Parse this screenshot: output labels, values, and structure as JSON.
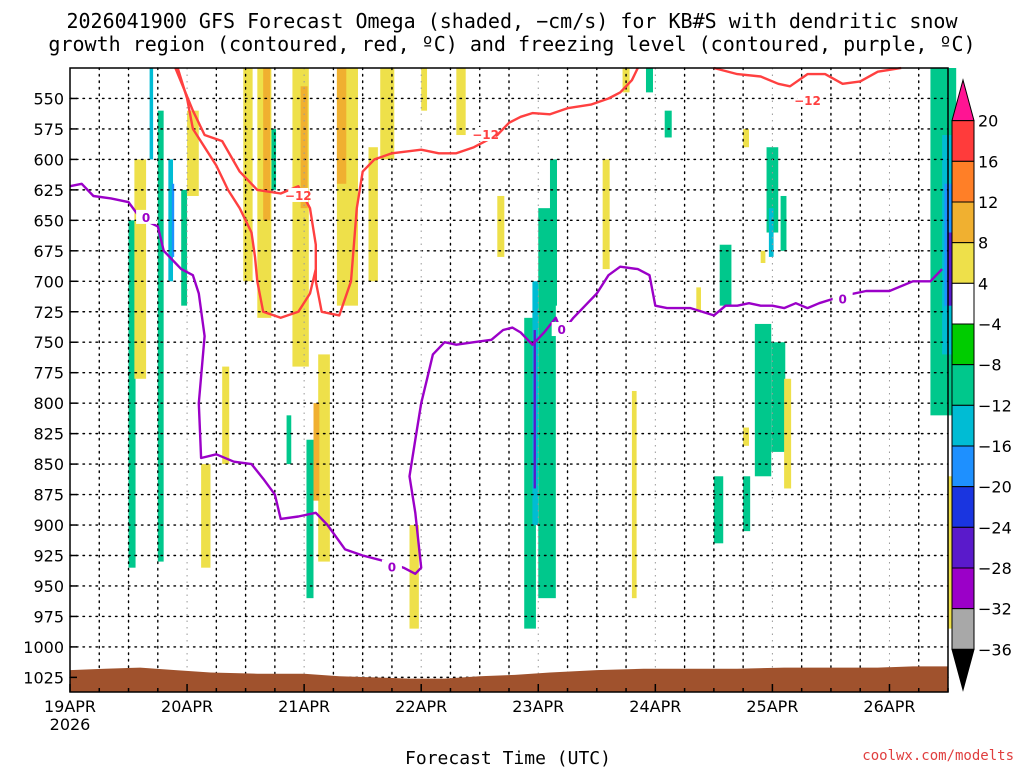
{
  "chart_data": {
    "type": "heatmap",
    "title_lines": [
      "2026041900 GFS Forecast Omega (shaded, −cm/s) for KB#S with dendritic snow",
      "growth region (contoured, red, ºC) and freezing level (contoured, purple, ºC)"
    ],
    "xlabel": "Forecast Time (UTC)",
    "credit": "coolwx.com/modelts",
    "credit_color": "#e03e3e",
    "x_ticks": [
      "19APR",
      "20APR",
      "21APR",
      "22APR",
      "23APR",
      "24APR",
      "25APR",
      "26APR"
    ],
    "x_year": "2026",
    "xlim_days": [
      0,
      7.5
    ],
    "y_ticks": [
      550,
      575,
      600,
      625,
      650,
      675,
      700,
      725,
      750,
      775,
      800,
      825,
      850,
      875,
      900,
      925,
      950,
      975,
      1000,
      1025
    ],
    "ylim": [
      525,
      1037
    ],
    "grid": true,
    "colorbar": {
      "labels": [
        "20",
        "16",
        "12",
        "8",
        "4",
        "−4",
        "−8",
        "−12",
        "−16",
        "−20",
        "−24",
        "−28",
        "−32",
        "−36"
      ],
      "colors": [
        "#ff1493",
        "#ff3b3b",
        "#ff7f27",
        "#f0b030",
        "#eee04a",
        "#ffffff",
        "#00cc00",
        "#00c88c",
        "#00bcd4",
        "#1e90ff",
        "#1a35e0",
        "#5a1acb",
        "#9b00c8",
        "#a8a8a8",
        "#000000"
      ]
    },
    "terrain_color": "#a0522d",
    "series": [
      {
        "name": "-12",
        "color": "#ff4040",
        "points": [
          [
            0.9,
            525
          ],
          [
            1.05,
            560
          ],
          [
            1.15,
            580
          ],
          [
            1.3,
            585
          ],
          [
            1.45,
            610
          ],
          [
            1.6,
            625
          ],
          [
            1.8,
            628
          ],
          [
            1.95,
            622
          ],
          [
            2.05,
            640
          ],
          [
            2.1,
            670
          ],
          [
            2.1,
            700
          ],
          [
            2.15,
            725
          ],
          [
            2.3,
            728
          ],
          [
            2.4,
            700
          ],
          [
            2.45,
            640
          ],
          [
            2.5,
            610
          ],
          [
            2.6,
            600
          ],
          [
            2.75,
            595
          ],
          [
            3.0,
            592
          ],
          [
            3.15,
            595
          ],
          [
            3.3,
            595
          ],
          [
            3.45,
            590
          ],
          [
            3.55,
            585
          ],
          [
            3.65,
            580
          ],
          [
            3.75,
            570
          ],
          [
            3.85,
            565
          ],
          [
            3.95,
            562
          ],
          [
            4.1,
            563
          ],
          [
            4.25,
            558
          ],
          [
            4.45,
            555
          ],
          [
            4.6,
            550
          ],
          [
            4.7,
            545
          ],
          [
            4.8,
            535
          ],
          [
            4.85,
            525
          ]
        ],
        "labels": [
          {
            "text": "−12",
            "x": 1.95,
            "p": 630
          },
          {
            "text": "−12",
            "x": 3.55,
            "p": 580
          }
        ]
      },
      {
        "name": "-12",
        "color": "#ff4040",
        "points": [
          [
            0.92,
            525
          ],
          [
            1.0,
            550
          ],
          [
            1.05,
            575
          ],
          [
            1.15,
            590
          ],
          [
            1.25,
            605
          ],
          [
            1.35,
            625
          ],
          [
            1.45,
            640
          ],
          [
            1.55,
            660
          ],
          [
            1.58,
            680
          ],
          [
            1.6,
            700
          ],
          [
            1.65,
            725
          ],
          [
            1.8,
            730
          ],
          [
            1.95,
            725
          ],
          [
            2.05,
            710
          ],
          [
            2.1,
            690
          ]
        ]
      },
      {
        "name": "-12",
        "color": "#ff4040",
        "points": [
          [
            5.5,
            525
          ],
          [
            5.7,
            530
          ],
          [
            5.9,
            532
          ],
          [
            6.05,
            538
          ],
          [
            6.15,
            540
          ],
          [
            6.3,
            530
          ],
          [
            6.45,
            530
          ],
          [
            6.6,
            538
          ],
          [
            6.75,
            536
          ],
          [
            6.9,
            528
          ],
          [
            7.1,
            525
          ]
        ],
        "labels": [
          {
            "text": "−12",
            "x": 6.3,
            "p": 552
          }
        ]
      },
      {
        "name": "0",
        "color": "#9b00c8",
        "points": [
          [
            0,
            622
          ],
          [
            0.1,
            620
          ],
          [
            0.2,
            630
          ],
          [
            0.35,
            632
          ],
          [
            0.5,
            635
          ],
          [
            0.6,
            648
          ],
          [
            0.75,
            655
          ],
          [
            0.8,
            675
          ],
          [
            0.9,
            685
          ],
          [
            0.95,
            690
          ],
          [
            1.05,
            695
          ],
          [
            1.1,
            710
          ],
          [
            1.15,
            745
          ],
          [
            1.1,
            800
          ],
          [
            1.12,
            845
          ],
          [
            1.25,
            842
          ],
          [
            1.4,
            848
          ],
          [
            1.55,
            850
          ],
          [
            1.65,
            862
          ],
          [
            1.75,
            875
          ],
          [
            1.8,
            895
          ],
          [
            1.95,
            893
          ],
          [
            2.1,
            890
          ],
          [
            2.2,
            900
          ],
          [
            2.35,
            920
          ],
          [
            2.5,
            925
          ],
          [
            2.7,
            930
          ],
          [
            2.85,
            935
          ],
          [
            2.95,
            940
          ],
          [
            3.0,
            935
          ],
          [
            2.95,
            890
          ],
          [
            2.9,
            860
          ],
          [
            2.95,
            830
          ],
          [
            3.0,
            800
          ],
          [
            3.05,
            780
          ],
          [
            3.1,
            760
          ],
          [
            3.2,
            750
          ],
          [
            3.3,
            752
          ],
          [
            3.45,
            750
          ],
          [
            3.6,
            748
          ],
          [
            3.7,
            740
          ],
          [
            3.78,
            738
          ],
          [
            3.85,
            742
          ],
          [
            3.95,
            752
          ],
          [
            4.05,
            742
          ],
          [
            4.15,
            730
          ],
          [
            4.2,
            742
          ],
          [
            4.3,
            730
          ],
          [
            4.4,
            720
          ],
          [
            4.5,
            710
          ],
          [
            4.6,
            695
          ],
          [
            4.7,
            688
          ],
          [
            4.85,
            690
          ],
          [
            4.95,
            695
          ],
          [
            5.0,
            720
          ],
          [
            5.1,
            722
          ],
          [
            5.3,
            722
          ],
          [
            5.5,
            728
          ],
          [
            5.6,
            720
          ],
          [
            5.7,
            720
          ],
          [
            5.8,
            718
          ],
          [
            5.9,
            720
          ],
          [
            6.0,
            720
          ],
          [
            6.1,
            722
          ],
          [
            6.2,
            718
          ],
          [
            6.3,
            722
          ],
          [
            6.4,
            718
          ],
          [
            6.6,
            712
          ],
          [
            6.8,
            708
          ],
          [
            7.0,
            708
          ],
          [
            7.2,
            700
          ],
          [
            7.35,
            700
          ],
          [
            7.45,
            690
          ]
        ],
        "labels": [
          {
            "text": "0",
            "x": 0.65,
            "p": 648
          },
          {
            "text": "0",
            "x": 2.75,
            "p": 935
          },
          {
            "text": "0",
            "x": 4.2,
            "p": 740
          },
          {
            "text": "0",
            "x": 6.6,
            "p": 715
          }
        ]
      }
    ],
    "shading": [
      {
        "v": -8,
        "x": 0.5,
        "w": 0.06,
        "p1": 650,
        "p2": 935
      },
      {
        "v": -8,
        "x": 0.75,
        "w": 0.05,
        "p1": 560,
        "p2": 930
      },
      {
        "v": -12,
        "x": 0.68,
        "w": 0.03,
        "p1": 525,
        "p2": 600
      },
      {
        "v": -8,
        "x": 0.95,
        "w": 0.05,
        "p1": 625,
        "p2": 720
      },
      {
        "v": -12,
        "x": 0.84,
        "w": 0.04,
        "p1": 600,
        "p2": 700
      },
      {
        "v": -16,
        "x": 0.87,
        "w": 0.02,
        "p1": 620,
        "p2": 680
      },
      {
        "v": -8,
        "x": 1.72,
        "w": 0.04,
        "p1": 575,
        "p2": 625
      },
      {
        "v": -8,
        "x": 1.85,
        "w": 0.04,
        "p1": 810,
        "p2": 850
      },
      {
        "v": -8,
        "x": 2.02,
        "w": 0.06,
        "p1": 830,
        "p2": 960
      },
      {
        "v": -8,
        "x": 4.0,
        "w": 0.15,
        "p1": 640,
        "p2": 960
      },
      {
        "v": -8,
        "x": 3.88,
        "w": 0.1,
        "p1": 730,
        "p2": 985
      },
      {
        "v": -12,
        "x": 3.95,
        "w": 0.05,
        "p1": 700,
        "p2": 900
      },
      {
        "v": -24,
        "x": 3.96,
        "w": 0.02,
        "p1": 740,
        "p2": 870
      },
      {
        "v": -8,
        "x": 4.1,
        "w": 0.06,
        "p1": 600,
        "p2": 720
      },
      {
        "v": -8,
        "x": 5.5,
        "w": 0.08,
        "p1": 860,
        "p2": 915
      },
      {
        "v": -8,
        "x": 5.75,
        "w": 0.06,
        "p1": 860,
        "p2": 905
      },
      {
        "v": -8,
        "x": 5.95,
        "w": 0.1,
        "p1": 590,
        "p2": 660
      },
      {
        "v": -8,
        "x": 6.07,
        "w": 0.05,
        "p1": 630,
        "p2": 675
      },
      {
        "v": -12,
        "x": 5.97,
        "w": 0.04,
        "p1": 640,
        "p2": 680
      },
      {
        "v": -8,
        "x": 5.85,
        "w": 0.14,
        "p1": 735,
        "p2": 860
      },
      {
        "v": -8,
        "x": 5.99,
        "w": 0.12,
        "p1": 750,
        "p2": 840
      },
      {
        "v": -8,
        "x": 5.08,
        "w": 0.06,
        "p1": 560,
        "p2": 582
      },
      {
        "v": -8,
        "x": 4.92,
        "w": 0.06,
        "p1": 525,
        "p2": 545
      },
      {
        "v": -8,
        "x": 5.55,
        "w": 0.1,
        "p1": 670,
        "p2": 720
      },
      {
        "v": -8,
        "x": 7.35,
        "w": 0.22,
        "p1": 525,
        "p2": 810
      },
      {
        "v": -12,
        "x": 7.45,
        "w": 0.12,
        "p1": 580,
        "p2": 760
      },
      {
        "v": -16,
        "x": 7.47,
        "w": 0.06,
        "p1": 620,
        "p2": 720
      },
      {
        "v": -24,
        "x": 7.5,
        "w": 0.03,
        "p1": 660,
        "p2": 720
      },
      {
        "v": 4,
        "x": 0.55,
        "w": 0.1,
        "p1": 600,
        "p2": 780
      },
      {
        "v": 4,
        "x": 1.0,
        "w": 0.1,
        "p1": 560,
        "p2": 630
      },
      {
        "v": 4,
        "x": 1.12,
        "w": 0.08,
        "p1": 850,
        "p2": 935
      },
      {
        "v": 4,
        "x": 1.3,
        "w": 0.06,
        "p1": 770,
        "p2": 850
      },
      {
        "v": 4,
        "x": 1.48,
        "w": 0.08,
        "p1": 525,
        "p2": 700
      },
      {
        "v": 4,
        "x": 1.6,
        "w": 0.12,
        "p1": 525,
        "p2": 730
      },
      {
        "v": 8,
        "x": 1.65,
        "w": 0.06,
        "p1": 525,
        "p2": 650
      },
      {
        "v": 4,
        "x": 1.9,
        "w": 0.14,
        "p1": 525,
        "p2": 770
      },
      {
        "v": 8,
        "x": 1.97,
        "w": 0.06,
        "p1": 540,
        "p2": 640
      },
      {
        "v": 4,
        "x": 2.12,
        "w": 0.1,
        "p1": 760,
        "p2": 930
      },
      {
        "v": 8,
        "x": 2.08,
        "w": 0.05,
        "p1": 800,
        "p2": 880
      },
      {
        "v": 4,
        "x": 2.28,
        "w": 0.18,
        "p1": 525,
        "p2": 720
      },
      {
        "v": 8,
        "x": 2.28,
        "w": 0.08,
        "p1": 525,
        "p2": 620
      },
      {
        "v": 4,
        "x": 2.55,
        "w": 0.08,
        "p1": 590,
        "p2": 700
      },
      {
        "v": 4,
        "x": 2.65,
        "w": 0.12,
        "p1": 525,
        "p2": 600
      },
      {
        "v": 4,
        "x": 2.9,
        "w": 0.08,
        "p1": 900,
        "p2": 985
      },
      {
        "v": 4,
        "x": 3.3,
        "w": 0.08,
        "p1": 525,
        "p2": 580
      },
      {
        "v": 4,
        "x": 3.65,
        "w": 0.06,
        "p1": 630,
        "p2": 680
      },
      {
        "v": 4,
        "x": 4.55,
        "w": 0.06,
        "p1": 600,
        "p2": 690
      },
      {
        "v": 4,
        "x": 4.72,
        "w": 0.06,
        "p1": 525,
        "p2": 545
      },
      {
        "v": 4,
        "x": 4.8,
        "w": 0.04,
        "p1": 790,
        "p2": 960
      },
      {
        "v": 4,
        "x": 5.75,
        "w": 0.05,
        "p1": 575,
        "p2": 590
      },
      {
        "v": 4,
        "x": 5.75,
        "w": 0.05,
        "p1": 820,
        "p2": 835
      },
      {
        "v": 4,
        "x": 6.1,
        "w": 0.06,
        "p1": 780,
        "p2": 870
      },
      {
        "v": 4,
        "x": 5.9,
        "w": 0.04,
        "p1": 675,
        "p2": 685
      },
      {
        "v": 4,
        "x": 5.35,
        "w": 0.04,
        "p1": 705,
        "p2": 725
      },
      {
        "v": 4,
        "x": 7.5,
        "w": 0.08,
        "p1": 860,
        "p2": 985
      },
      {
        "v": 4,
        "x": 3.0,
        "w": 0.05,
        "p1": 525,
        "p2": 560
      }
    ]
  }
}
